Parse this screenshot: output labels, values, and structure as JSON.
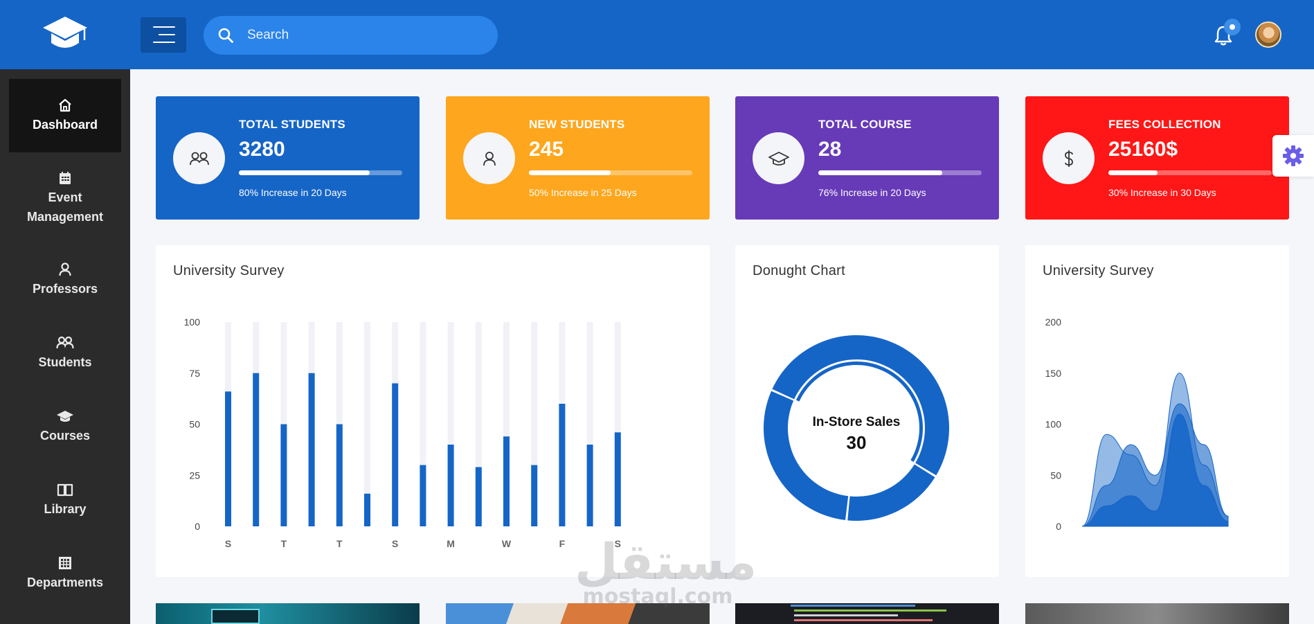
{
  "header": {
    "search_placeholder": "Search"
  },
  "sidebar": {
    "items": [
      {
        "label": "Dashboard",
        "icon": "home-icon"
      },
      {
        "label": "Event Management",
        "icon": "calendar-icon"
      },
      {
        "label": "Professors",
        "icon": "user-icon"
      },
      {
        "label": "Students",
        "icon": "users-icon"
      },
      {
        "label": "Courses",
        "icon": "graduation-cap-icon"
      },
      {
        "label": "Library",
        "icon": "book-icon"
      },
      {
        "label": "Departments",
        "icon": "building-icon"
      }
    ]
  },
  "stats": [
    {
      "title": "TOTAL STUDENTS",
      "value": "3280",
      "progress": 0.8,
      "note": "80% Increase in 20 Days",
      "color": "#1565c7",
      "icon": "users-icon"
    },
    {
      "title": "NEW STUDENTS",
      "value": "245",
      "progress": 0.5,
      "note": "50% Increase in 25 Days",
      "color": "#fea61d",
      "icon": "user-icon"
    },
    {
      "title": "TOTAL COURSE",
      "value": "28",
      "progress": 0.76,
      "note": "76% Increase in 20 Days",
      "color": "#673ab8",
      "icon": "graduation-cap-icon"
    },
    {
      "title": "FEES COLLECTION",
      "value": "25160$",
      "progress": 0.3,
      "note": "30% Increase in 30 Days",
      "color": "#ff1616",
      "icon": "dollar-icon"
    }
  ],
  "colors": {
    "primary": "#1565c7",
    "bar_track": "#f1f2f7",
    "sidebar": "#2b2b2b",
    "gear": "#6a5ee8"
  },
  "watermark": {
    "arabic": "مستقل",
    "latin": "mostaql.com"
  },
  "chart_data": [
    {
      "type": "bar",
      "title": "University Survey",
      "x_tick_labels": [
        "S",
        "T",
        "T",
        "S",
        "M",
        "W",
        "F",
        "S"
      ],
      "values": [
        66,
        75,
        50,
        75,
        50,
        16,
        70,
        30,
        40,
        29,
        44,
        30,
        60,
        40,
        46
      ],
      "ylim": [
        0,
        100
      ],
      "yticks": [
        0,
        25,
        50,
        75,
        100
      ],
      "grid": false,
      "legend": false
    },
    {
      "type": "pie",
      "title": "Donught Chart",
      "center_label": "In-Store Sales",
      "center_value": "30",
      "slices": [
        0.52,
        0.18,
        0.3
      ]
    },
    {
      "type": "area",
      "title": "University Survey",
      "ylim": [
        0,
        200
      ],
      "yticks": [
        0,
        50,
        100,
        150,
        200
      ],
      "series": [
        {
          "values": [
            0,
            90,
            70,
            40,
            150,
            60,
            10
          ]
        },
        {
          "values": [
            0,
            40,
            80,
            50,
            120,
            80,
            10
          ]
        },
        {
          "values": [
            0,
            20,
            30,
            15,
            110,
            40,
            5
          ]
        }
      ],
      "grid": false,
      "legend": false
    }
  ]
}
